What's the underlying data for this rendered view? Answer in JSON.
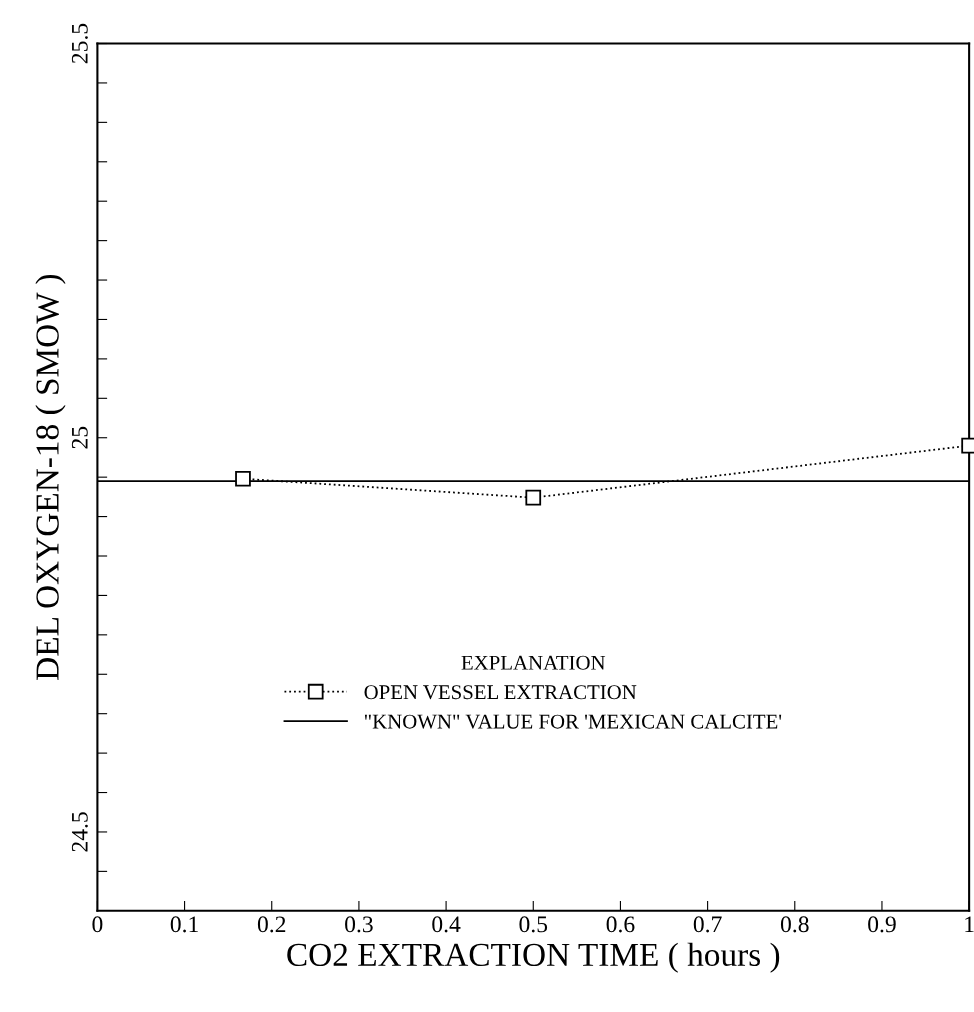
{
  "chart_data": {
    "type": "line",
    "xlabel": "CO2 EXTRACTION TIME ( hours )",
    "ylabel": "DEL OXYGEN-18 ( SMOW )",
    "legend_title": "EXPLANATION",
    "x": [
      0.167,
      0.5,
      1.0
    ],
    "series": [
      {
        "name": "OPEN VESSEL EXTRACTION",
        "color": "#000000",
        "values": [
          24.948,
          24.924,
          24.99
        ],
        "marker": "square",
        "line_style": "dotted"
      }
    ],
    "ref_lines": [
      {
        "axis": "y",
        "value": 24.945,
        "label": "\"KNOWN\" VALUE FOR 'MEXICAN CALCITE'",
        "color": "#000000",
        "line_style": "solid"
      }
    ],
    "xlim": [
      0,
      1
    ],
    "xticks": [
      0,
      0.1,
      0.2,
      0.3,
      0.4,
      0.5,
      0.6,
      0.7,
      0.8,
      0.9,
      1
    ],
    "ylim": [
      24.4,
      25.5
    ],
    "yticks": [
      {
        "value": 24.45,
        "label": null
      },
      24.5,
      {
        "value": 24.55,
        "label": null
      },
      {
        "value": 24.6,
        "label": null
      },
      {
        "value": 24.65,
        "label": null
      },
      {
        "value": 24.7,
        "label": null
      },
      {
        "value": 24.75,
        "label": null
      },
      {
        "value": 24.8,
        "label": null
      },
      {
        "value": 24.85,
        "label": null
      },
      {
        "value": 24.9,
        "label": null
      },
      {
        "value": 24.95,
        "label": null
      },
      25,
      {
        "value": 25.05,
        "label": null
      },
      {
        "value": 25.1,
        "label": null
      },
      {
        "value": 25.15,
        "label": null
      },
      {
        "value": 25.2,
        "label": null
      },
      {
        "value": 25.25,
        "label": null
      },
      {
        "value": 25.3,
        "label": null
      },
      {
        "value": 25.35,
        "label": null
      },
      {
        "value": 25.4,
        "label": null
      },
      {
        "value": 25.45,
        "label": null
      },
      25.5
    ],
    "grid": false,
    "legend": "center"
  }
}
